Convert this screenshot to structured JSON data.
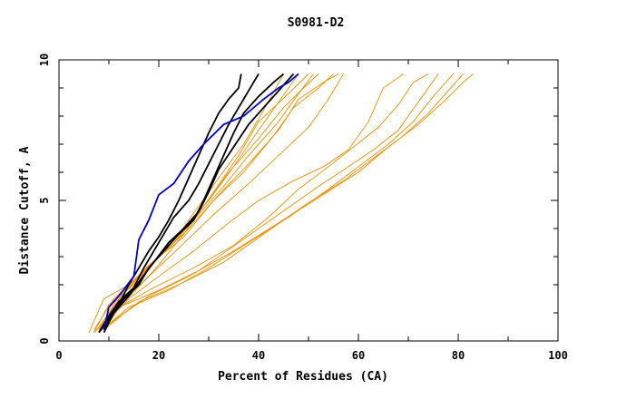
{
  "chart_data": {
    "type": "line",
    "title": "S0981-D2",
    "xlabel": "Percent of Residues (CA)",
    "ylabel": "Distance Cutoff, A",
    "xlim": [
      0,
      100
    ],
    "ylim": [
      0,
      10
    ],
    "x_ticks": [
      0,
      20,
      40,
      60,
      80,
      100
    ],
    "y_ticks": [
      0,
      5,
      10
    ],
    "grid": false,
    "legend": "none",
    "colors": {
      "other": "#ef8f00",
      "highlight": "#000000",
      "reference": "#0000cc"
    },
    "series": [
      {
        "group": "other",
        "points": [
          [
            6,
            0.3
          ],
          [
            9,
            1.5
          ],
          [
            14,
            2.0
          ],
          [
            20,
            3.0
          ],
          [
            26,
            4.2
          ],
          [
            30,
            5.0
          ],
          [
            35,
            6.2
          ],
          [
            40,
            7.5
          ],
          [
            44,
            8.5
          ],
          [
            48,
            9.5
          ]
        ]
      },
      {
        "group": "other",
        "points": [
          [
            7,
            0.3
          ],
          [
            10,
            1.3
          ],
          [
            15,
            2.0
          ],
          [
            19,
            2.8
          ],
          [
            24,
            3.8
          ],
          [
            28,
            4.8
          ],
          [
            32,
            5.8
          ],
          [
            37,
            7.0
          ],
          [
            41,
            8.2
          ],
          [
            45,
            9.5
          ]
        ]
      },
      {
        "group": "other",
        "points": [
          [
            7,
            0.4
          ],
          [
            11,
            1.5
          ],
          [
            16,
            2.3
          ],
          [
            22,
            3.3
          ],
          [
            28,
            4.5
          ],
          [
            33,
            5.5
          ],
          [
            38,
            6.6
          ],
          [
            44,
            7.8
          ],
          [
            48,
            8.8
          ],
          [
            51,
            9.5
          ]
        ]
      },
      {
        "group": "other",
        "points": [
          [
            8,
            0.3
          ],
          [
            12,
            1.5
          ],
          [
            17,
            2.5
          ],
          [
            23,
            3.5
          ],
          [
            29,
            4.8
          ],
          [
            34,
            6.0
          ],
          [
            40,
            7.2
          ],
          [
            45,
            8.3
          ],
          [
            49,
            9.0
          ],
          [
            52,
            9.5
          ]
        ]
      },
      {
        "group": "other",
        "points": [
          [
            8,
            0.4
          ],
          [
            12,
            1.6
          ],
          [
            18,
            2.7
          ],
          [
            25,
            3.7
          ],
          [
            31,
            5.0
          ],
          [
            37,
            6.0
          ],
          [
            43,
            7.3
          ],
          [
            47,
            8.3
          ],
          [
            52,
            9.0
          ],
          [
            55,
            9.5
          ]
        ]
      },
      {
        "group": "other",
        "points": [
          [
            8,
            0.5
          ],
          [
            13,
            1.7
          ],
          [
            19,
            2.8
          ],
          [
            26,
            4.0
          ],
          [
            32,
            5.2
          ],
          [
            38,
            6.3
          ],
          [
            44,
            7.5
          ],
          [
            48,
            8.6
          ],
          [
            53,
            9.2
          ],
          [
            56,
            9.5
          ]
        ]
      },
      {
        "group": "other",
        "points": [
          [
            9,
            0.4
          ],
          [
            13,
            1.4
          ],
          [
            19,
            2.5
          ],
          [
            25,
            3.8
          ],
          [
            31,
            5.3
          ],
          [
            36,
            6.6
          ],
          [
            40,
            7.8
          ],
          [
            46,
            8.8
          ],
          [
            50,
            9.5
          ]
        ]
      },
      {
        "group": "other",
        "points": [
          [
            8,
            0.3
          ],
          [
            12,
            1.2
          ],
          [
            18,
            2.3
          ],
          [
            24,
            3.3
          ],
          [
            31,
            4.5
          ],
          [
            38,
            5.6
          ],
          [
            44,
            6.6
          ],
          [
            50,
            7.6
          ],
          [
            54,
            8.6
          ],
          [
            57,
            9.5
          ]
        ]
      },
      {
        "group": "other",
        "points": [
          [
            8,
            0.4
          ],
          [
            14,
            1.5
          ],
          [
            20,
            2.3
          ],
          [
            27,
            3.2
          ],
          [
            34,
            4.2
          ],
          [
            40,
            5.0
          ],
          [
            47,
            5.7
          ],
          [
            53,
            6.2
          ],
          [
            58,
            6.8
          ],
          [
            62,
            7.8
          ],
          [
            65,
            9.0
          ],
          [
            69,
            9.5
          ]
        ]
      },
      {
        "group": "other",
        "points": [
          [
            7,
            0.3
          ],
          [
            13,
            1.3
          ],
          [
            19,
            1.9
          ],
          [
            27,
            2.6
          ],
          [
            35,
            3.4
          ],
          [
            42,
            4.4
          ],
          [
            48,
            5.4
          ],
          [
            54,
            6.2
          ],
          [
            59,
            6.9
          ],
          [
            64,
            7.6
          ],
          [
            68,
            8.4
          ],
          [
            71,
            9.2
          ],
          [
            74,
            9.5
          ]
        ]
      },
      {
        "group": "other",
        "points": [
          [
            7,
            0.3
          ],
          [
            12,
            1.2
          ],
          [
            20,
            1.8
          ],
          [
            28,
            2.5
          ],
          [
            36,
            3.5
          ],
          [
            44,
            4.5
          ],
          [
            52,
            5.5
          ],
          [
            58,
            6.2
          ],
          [
            63,
            6.8
          ],
          [
            68,
            7.5
          ],
          [
            72,
            8.5
          ],
          [
            76,
            9.5
          ]
        ]
      },
      {
        "group": "other",
        "points": [
          [
            8,
            0.3
          ],
          [
            14,
            1.2
          ],
          [
            22,
            1.8
          ],
          [
            30,
            2.6
          ],
          [
            38,
            3.5
          ],
          [
            46,
            4.4
          ],
          [
            54,
            5.4
          ],
          [
            60,
            6.2
          ],
          [
            66,
            7.0
          ],
          [
            71,
            7.8
          ],
          [
            75,
            8.7
          ],
          [
            79,
            9.5
          ]
        ]
      },
      {
        "group": "other",
        "points": [
          [
            9,
            0.4
          ],
          [
            16,
            1.4
          ],
          [
            24,
            2.0
          ],
          [
            33,
            2.8
          ],
          [
            41,
            3.8
          ],
          [
            49,
            4.8
          ],
          [
            57,
            5.7
          ],
          [
            63,
            6.5
          ],
          [
            69,
            7.3
          ],
          [
            74,
            8.1
          ],
          [
            78,
            8.9
          ],
          [
            81,
            9.5
          ]
        ]
      },
      {
        "group": "other",
        "points": [
          [
            10,
            0.6
          ],
          [
            18,
            1.6
          ],
          [
            26,
            2.3
          ],
          [
            35,
            3.2
          ],
          [
            44,
            4.2
          ],
          [
            52,
            5.1
          ],
          [
            60,
            6.0
          ],
          [
            66,
            6.9
          ],
          [
            72,
            7.7
          ],
          [
            77,
            8.5
          ],
          [
            81,
            9.2
          ],
          [
            83,
            9.5
          ]
        ]
      },
      {
        "group": "highlight",
        "points": [
          [
            8,
            0.3
          ],
          [
            10,
            0.8
          ],
          [
            12,
            1.3
          ],
          [
            14,
            2.0
          ],
          [
            16,
            2.6
          ],
          [
            18,
            3.2
          ],
          [
            20,
            3.7
          ],
          [
            22,
            4.3
          ],
          [
            24,
            5.0
          ],
          [
            26,
            5.8
          ],
          [
            28,
            6.6
          ],
          [
            30,
            7.4
          ],
          [
            32,
            8.1
          ],
          [
            34,
            8.6
          ],
          [
            36,
            9.0
          ],
          [
            36.5,
            9.5
          ]
        ]
      },
      {
        "group": "highlight",
        "points": [
          [
            8,
            0.3
          ],
          [
            10,
            0.9
          ],
          [
            12,
            1.4
          ],
          [
            15,
            1.9
          ],
          [
            17,
            2.6
          ],
          [
            19,
            3.2
          ],
          [
            21,
            3.8
          ],
          [
            23,
            4.4
          ],
          [
            26,
            5.0
          ],
          [
            28,
            5.6
          ],
          [
            30,
            6.3
          ],
          [
            32,
            7.0
          ],
          [
            34,
            7.7
          ],
          [
            36,
            8.3
          ],
          [
            38,
            8.9
          ],
          [
            40,
            9.5
          ]
        ]
      },
      {
        "group": "highlight",
        "points": [
          [
            9,
            0.4
          ],
          [
            11,
            1.0
          ],
          [
            13,
            1.5
          ],
          [
            16,
            2.0
          ],
          [
            18,
            2.6
          ],
          [
            21,
            3.2
          ],
          [
            24,
            3.8
          ],
          [
            27,
            4.3
          ],
          [
            29,
            5.0
          ],
          [
            31,
            5.8
          ],
          [
            33,
            6.6
          ],
          [
            35,
            7.4
          ],
          [
            37,
            8.1
          ],
          [
            40,
            8.7
          ],
          [
            43,
            9.2
          ],
          [
            45,
            9.5
          ]
        ]
      },
      {
        "group": "highlight",
        "points": [
          [
            9,
            0.3
          ],
          [
            11,
            1.0
          ],
          [
            14,
            1.6
          ],
          [
            16,
            2.1
          ],
          [
            19,
            2.8
          ],
          [
            22,
            3.5
          ],
          [
            25,
            4.0
          ],
          [
            28,
            4.6
          ],
          [
            30,
            5.3
          ],
          [
            32,
            6.1
          ],
          [
            35,
            6.9
          ],
          [
            38,
            7.7
          ],
          [
            41,
            8.3
          ],
          [
            44,
            8.9
          ],
          [
            47,
            9.5
          ]
        ]
      },
      {
        "group": "reference",
        "points": [
          [
            9,
            0.4
          ],
          [
            10,
            1.2
          ],
          [
            12,
            1.6
          ],
          [
            15,
            2.3
          ],
          [
            16,
            3.6
          ],
          [
            18,
            4.3
          ],
          [
            20,
            5.2
          ],
          [
            23,
            5.6
          ],
          [
            26,
            6.4
          ],
          [
            29,
            7.0
          ],
          [
            33,
            7.7
          ],
          [
            37,
            8.0
          ],
          [
            41,
            8.6
          ],
          [
            44,
            9.0
          ],
          [
            46,
            9.2
          ],
          [
            48,
            9.5
          ]
        ]
      }
    ]
  }
}
